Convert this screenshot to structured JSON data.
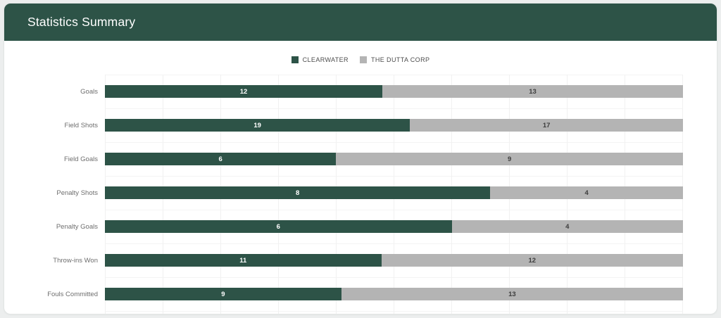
{
  "header": {
    "title": "Statistics Summary"
  },
  "colors": {
    "header_bg": "#2d5347",
    "clearwater": "#2d5347",
    "dutta_corp": "#b4b4b4",
    "grid": "#f1f1f1",
    "value_on_green": "#ffffff",
    "value_on_gray": "#3d3d3d"
  },
  "chart_data": {
    "type": "bar",
    "variant": "horizontal-stacked-100pct",
    "title": "Statistics Summary",
    "legend_position": "top",
    "value_labels": "inside-center",
    "grid": true,
    "xlim": [
      0,
      1
    ],
    "categories": [
      "Goals",
      "Field Shots",
      "Field Goals",
      "Penalty Shots",
      "Penalty Goals",
      "Throw-ins Won",
      "Fouls Committed"
    ],
    "series": [
      {
        "name": "CLEARWATER",
        "color": "#2d5347",
        "values": [
          12,
          19,
          6,
          8,
          6,
          11,
          9
        ]
      },
      {
        "name": "THE DUTTA CORP",
        "color": "#b4b4b4",
        "values": [
          13,
          17,
          9,
          4,
          4,
          12,
          13
        ]
      }
    ]
  }
}
